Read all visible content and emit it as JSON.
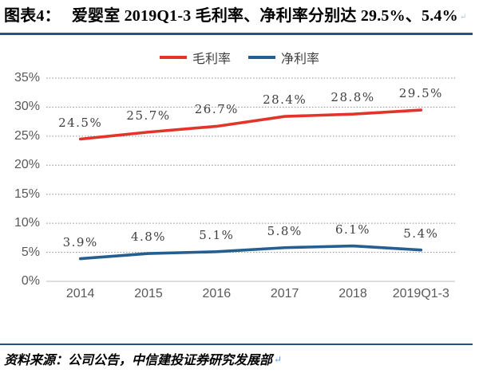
{
  "header": {
    "label": "图表4：",
    "title": "爱婴室 2019Q1-3 毛利率、净利率分别达 29.5%、5.4%",
    "return_mark": "↵"
  },
  "chart_data": {
    "type": "line",
    "categories": [
      "2014",
      "2015",
      "2016",
      "2017",
      "2018",
      "2019Q1-3"
    ],
    "series": [
      {
        "key": "gross-margin",
        "name": "毛利率",
        "color": "#E3342A",
        "values": [
          24.5,
          25.7,
          26.7,
          28.4,
          28.8,
          29.5
        ]
      },
      {
        "key": "net-margin",
        "name": "净利率",
        "color": "#255E91",
        "values": [
          3.9,
          4.8,
          5.1,
          5.8,
          6.1,
          5.4
        ]
      }
    ],
    "ylim": [
      0,
      35
    ],
    "yticks": [
      0,
      5,
      10,
      15,
      20,
      25,
      30,
      35
    ],
    "ytick_suffix": "%",
    "grid": true,
    "gridline_style": "dotted",
    "legend_position": "top",
    "data_labels": true
  },
  "footer": {
    "source": "资料来源：公司公告，中信建投证券研究发展部",
    "return_mark": "↵"
  },
  "colors": {
    "rule": "#27517F",
    "grid": "#8C8C8C",
    "axis_line": "#C9C9C9",
    "axis_text": "#595959",
    "data_label_text": "#3F3F3F",
    "legend_text": "#404040",
    "return_mark": "#5B9BD5"
  }
}
